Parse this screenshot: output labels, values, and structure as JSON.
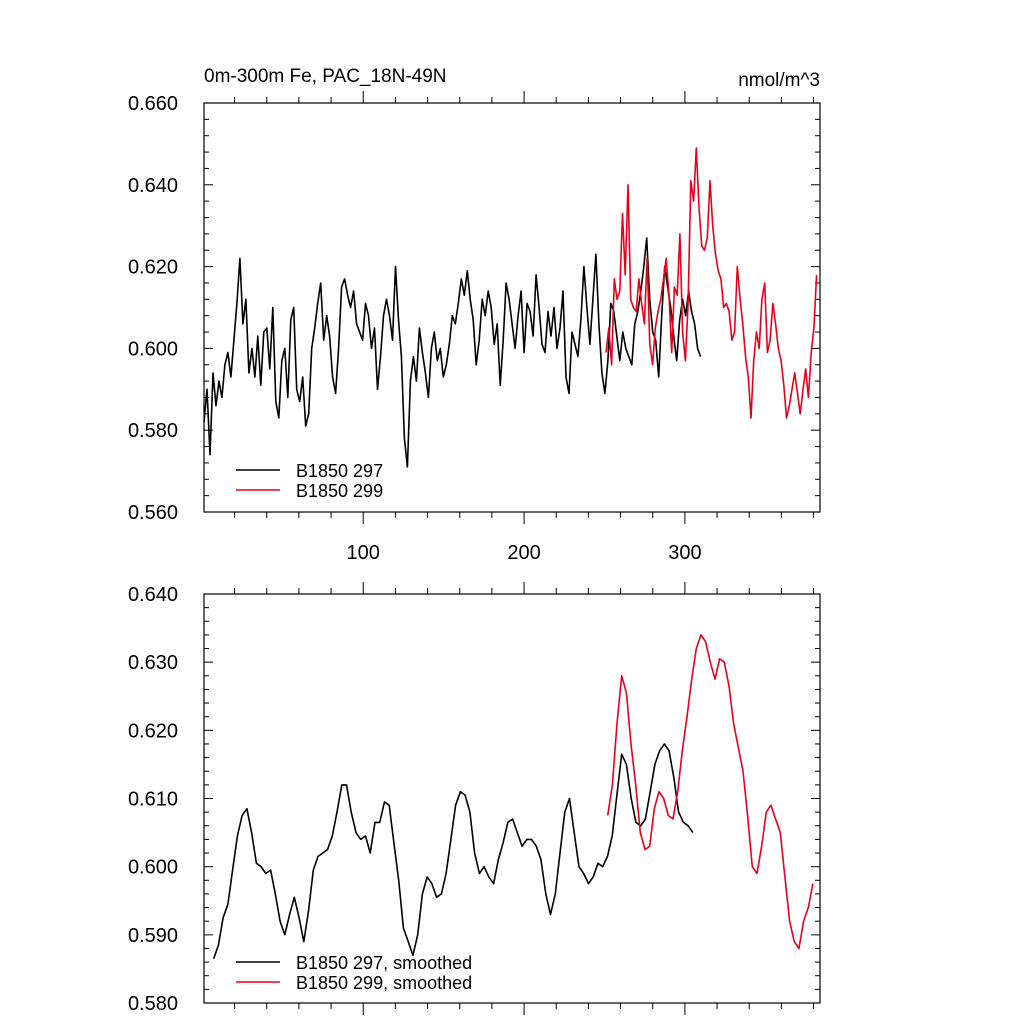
{
  "chart_data": [
    {
      "type": "line",
      "title_left": "0m-300m Fe, PAC_18N-49N",
      "title_right": "nmol/m^3",
      "xlim": [
        1,
        384
      ],
      "ylim": [
        0.56,
        0.66
      ],
      "yticks": [
        0.56,
        0.58,
        0.6,
        0.62,
        0.64,
        0.66
      ],
      "ytick_labels": [
        "0.560",
        "0.580",
        "0.600",
        "0.620",
        "0.640",
        "0.660"
      ],
      "xticks": [
        100,
        200,
        300
      ],
      "xtick_labels": [
        "100",
        "200",
        "300"
      ],
      "legend_position": "bottom-left",
      "series": [
        {
          "name": "B1850 297",
          "color": "#000000",
          "x_start": 1,
          "values": [
            0.582,
            0.59,
            0.574,
            0.594,
            0.586,
            0.592,
            0.588,
            0.596,
            0.599,
            0.593,
            0.602,
            0.611,
            0.622,
            0.606,
            0.612,
            0.594,
            0.6,
            0.593,
            0.603,
            0.591,
            0.604,
            0.605,
            0.595,
            0.61,
            0.587,
            0.583,
            0.597,
            0.6,
            0.588,
            0.607,
            0.61,
            0.59,
            0.587,
            0.593,
            0.581,
            0.584,
            0.6,
            0.605,
            0.611,
            0.616,
            0.602,
            0.608,
            0.603,
            0.593,
            0.589,
            0.6,
            0.615,
            0.617,
            0.613,
            0.61,
            0.614,
            0.606,
            0.604,
            0.602,
            0.611,
            0.608,
            0.6,
            0.605,
            0.59,
            0.598,
            0.608,
            0.612,
            0.608,
            0.602,
            0.62,
            0.607,
            0.598,
            0.578,
            0.571,
            0.592,
            0.598,
            0.592,
            0.605,
            0.599,
            0.594,
            0.588,
            0.6,
            0.604,
            0.597,
            0.6,
            0.593,
            0.596,
            0.601,
            0.608,
            0.606,
            0.611,
            0.617,
            0.613,
            0.619,
            0.612,
            0.607,
            0.596,
            0.602,
            0.612,
            0.608,
            0.614,
            0.61,
            0.601,
            0.606,
            0.591,
            0.602,
            0.616,
            0.612,
            0.606,
            0.6,
            0.608,
            0.614,
            0.599,
            0.611,
            0.609,
            0.603,
            0.618,
            0.61,
            0.601,
            0.599,
            0.609,
            0.603,
            0.61,
            0.6,
            0.605,
            0.614,
            0.593,
            0.589,
            0.604,
            0.601,
            0.598,
            0.607,
            0.62,
            0.61,
            0.601,
            0.612,
            0.623,
            0.606,
            0.594,
            0.589,
            0.597,
            0.611,
            0.609,
            0.603,
            0.597,
            0.604,
            0.6,
            0.598,
            0.596,
            0.606,
            0.609,
            0.614,
            0.62,
            0.627,
            0.612,
            0.604,
            0.602,
            0.593,
            0.608,
            0.62,
            0.615,
            0.61,
            0.603,
            0.597,
            0.607,
            0.612,
            0.608,
            0.614,
            0.609,
            0.606,
            0.6,
            0.598
          ],
          "x_step": 1.86
        },
        {
          "name": "B1850 299",
          "color": "#e8001a",
          "x_start": 251,
          "values": [
            0.599,
            0.605,
            0.596,
            0.617,
            0.612,
            0.614,
            0.633,
            0.618,
            0.64,
            0.612,
            0.61,
            0.609,
            0.617,
            0.611,
            0.606,
            0.622,
            0.601,
            0.596,
            0.605,
            0.609,
            0.612,
            0.617,
            0.622,
            0.613,
            0.599,
            0.615,
            0.613,
            0.628,
            0.604,
            0.597,
            0.611,
            0.641,
            0.636,
            0.649,
            0.634,
            0.625,
            0.624,
            0.627,
            0.641,
            0.63,
            0.623,
            0.619,
            0.617,
            0.61,
            0.611,
            0.609,
            0.602,
            0.604,
            0.62,
            0.612,
            0.606,
            0.598,
            0.593,
            0.583,
            0.597,
            0.604,
            0.6,
            0.612,
            0.616,
            0.599,
            0.602,
            0.611,
            0.606,
            0.6,
            0.597,
            0.591,
            0.583,
            0.586,
            0.59,
            0.594,
            0.589,
            0.584,
            0.59,
            0.595,
            0.588,
            0.599,
            0.605,
            0.618
          ],
          "x_step": 1.7
        }
      ]
    },
    {
      "type": "line",
      "xlim": [
        1,
        384
      ],
      "ylim": [
        0.58,
        0.64
      ],
      "yticks": [
        0.58,
        0.59,
        0.6,
        0.61,
        0.62,
        0.63,
        0.64
      ],
      "ytick_labels": [
        "0.580",
        "0.590",
        "0.600",
        "0.610",
        "0.620",
        "0.630",
        "0.640"
      ],
      "legend_position": "bottom-left",
      "series": [
        {
          "name": "B1850 297, smoothed",
          "color": "#000000",
          "x_start": 7,
          "values": [
            0.5865,
            0.5885,
            0.5925,
            0.5945,
            0.5995,
            0.6045,
            0.6075,
            0.6085,
            0.605,
            0.6005,
            0.6,
            0.599,
            0.5995,
            0.596,
            0.592,
            0.59,
            0.593,
            0.5955,
            0.5925,
            0.589,
            0.5935,
            0.5995,
            0.6015,
            0.602,
            0.6025,
            0.6045,
            0.608,
            0.612,
            0.612,
            0.608,
            0.605,
            0.604,
            0.6045,
            0.602,
            0.6065,
            0.6065,
            0.6095,
            0.609,
            0.6035,
            0.598,
            0.591,
            0.589,
            0.587,
            0.59,
            0.596,
            0.5985,
            0.5975,
            0.5955,
            0.596,
            0.599,
            0.604,
            0.609,
            0.611,
            0.6105,
            0.608,
            0.602,
            0.599,
            0.6,
            0.5985,
            0.5975,
            0.601,
            0.6035,
            0.6065,
            0.607,
            0.605,
            0.603,
            0.604,
            0.604,
            0.603,
            0.601,
            0.596,
            0.593,
            0.596,
            0.602,
            0.608,
            0.61,
            0.605,
            0.6,
            0.599,
            0.5975,
            0.5985,
            0.6005,
            0.6,
            0.6015,
            0.6045,
            0.6105,
            0.6165,
            0.615,
            0.61,
            0.6065,
            0.606,
            0.607,
            0.611,
            0.615,
            0.617,
            0.618,
            0.617,
            0.613,
            0.608,
            0.6065,
            0.606,
            0.605
          ],
          "x_step": 2.95
        },
        {
          "name": "B1850 299, smoothed",
          "color": "#e8001a",
          "x_start": 252,
          "values": [
            0.6075,
            0.612,
            0.621,
            0.628,
            0.6255,
            0.618,
            0.612,
            0.605,
            0.6025,
            0.603,
            0.6085,
            0.611,
            0.61,
            0.6075,
            0.607,
            0.611,
            0.617,
            0.622,
            0.6275,
            0.632,
            0.634,
            0.633,
            0.63,
            0.6275,
            0.6305,
            0.63,
            0.6265,
            0.621,
            0.6175,
            0.614,
            0.6075,
            0.6,
            0.599,
            0.603,
            0.608,
            0.609,
            0.607,
            0.605,
            0.5985,
            0.592,
            0.589,
            0.588,
            0.592,
            0.594,
            0.5975
          ],
          "x_step": 2.9
        }
      ]
    }
  ]
}
